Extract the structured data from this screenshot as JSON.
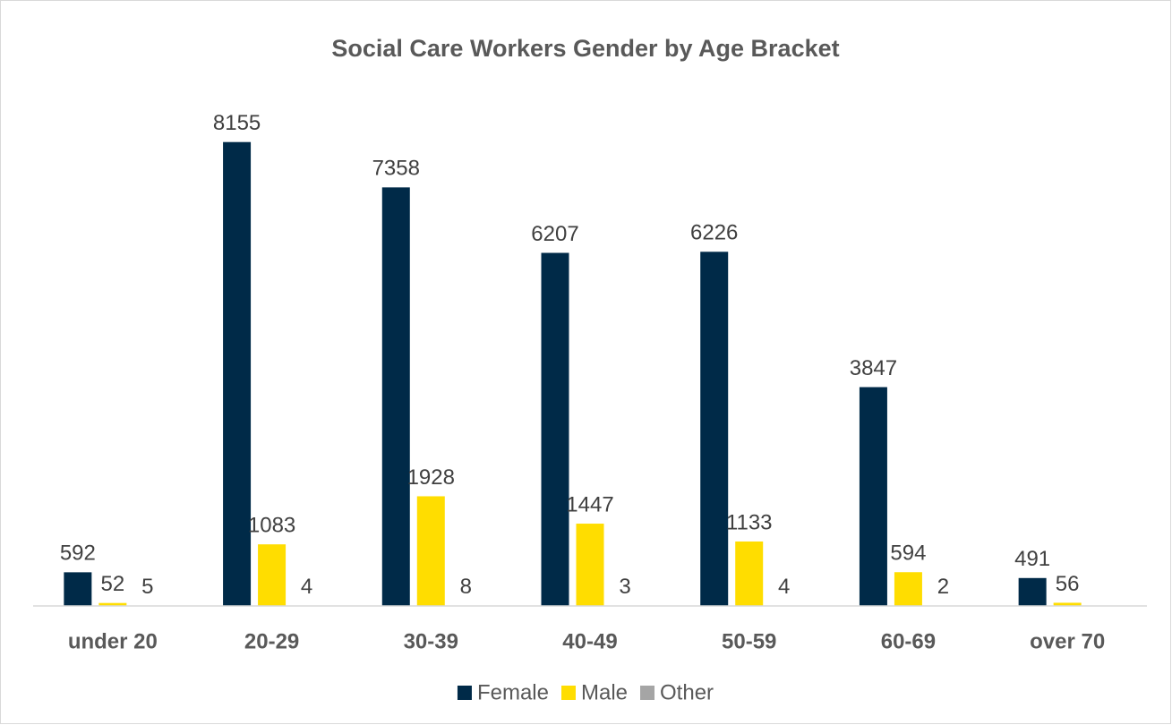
{
  "chart_data": {
    "type": "bar",
    "title": "Social Care Workers Gender by Age Bracket",
    "categories": [
      "under 20",
      "20-29",
      "30-39",
      "40-49",
      "50-59",
      "60-69",
      "over 70"
    ],
    "series": [
      {
        "name": "Female",
        "color": "#002a48",
        "values": [
          592,
          8155,
          7358,
          6207,
          6226,
          3847,
          491
        ]
      },
      {
        "name": "Male",
        "color": "#ffdd00",
        "values": [
          52,
          1083,
          1928,
          1447,
          1133,
          594,
          56
        ]
      },
      {
        "name": "Other",
        "color": "#a5a5a5",
        "values": [
          5,
          4,
          8,
          3,
          4,
          2,
          null
        ]
      }
    ],
    "ylim": [
      0,
      9000
    ],
    "legend": "bottom"
  }
}
